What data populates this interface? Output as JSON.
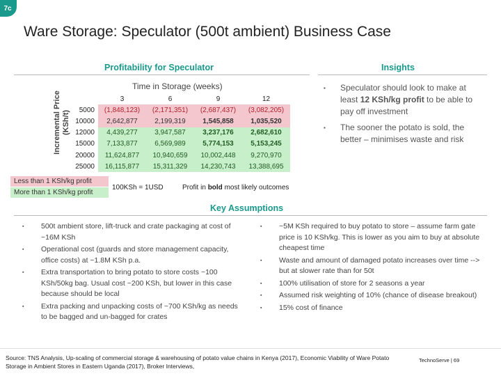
{
  "slide": {
    "number": "7c",
    "title": "Ware Storage: Speculator (500t ambient) Business Case"
  },
  "profitability": {
    "heading": "Profitability for Speculator",
    "y_axis_label": "Incremental Price (KSh/t)",
    "x_axis_label": "Time in Storage (weeks)",
    "weeks": [
      "3",
      "6",
      "9",
      "12"
    ],
    "rows": [
      {
        "price": "5000",
        "cells": [
          "(1,848,123)",
          "(2,171,351)",
          "(2,687,437)",
          "(3,082,205)"
        ],
        "classes": [
          "neg",
          "neg",
          "neg",
          "neg"
        ]
      },
      {
        "price": "10000",
        "cells": [
          "2,642,877",
          "2,199,319",
          "1,545,858",
          "1,035,520"
        ],
        "classes": [
          "low",
          "low",
          "low bold",
          "low bold"
        ]
      },
      {
        "price": "12000",
        "cells": [
          "4,439,277",
          "3,947,587",
          "3,237,176",
          "2,682,610"
        ],
        "classes": [
          "hi",
          "hi",
          "hi bold",
          "hi bold"
        ]
      },
      {
        "price": "15000",
        "cells": [
          "7,133,877",
          "6,569,989",
          "5,774,153",
          "5,153,245"
        ],
        "classes": [
          "hi",
          "hi",
          "hi bold",
          "hi bold"
        ]
      },
      {
        "price": "20000",
        "cells": [
          "11,624,877",
          "10,940,659",
          "10,002,448",
          "9,270,970"
        ],
        "classes": [
          "hi",
          "hi",
          "hi",
          "hi"
        ]
      },
      {
        "price": "25000",
        "cells": [
          "16,115,877",
          "15,311,329",
          "14,230,743",
          "13,388,695"
        ],
        "classes": [
          "hi",
          "hi",
          "hi",
          "hi"
        ]
      }
    ],
    "legend_low": "Less than 1 KSh/kg profit",
    "legend_high": "More than 1 KSh/kg profit",
    "currency_note": "100KSh = 1USD",
    "bold_note_prefix": "Profit in ",
    "bold_note_bold": "bold",
    "bold_note_suffix": " most likely outcomes"
  },
  "insights": {
    "heading": "Insights",
    "items": [
      {
        "pre": "Speculator should look to make at least ",
        "bold": "12 KSh/kg profit",
        "post": " to be able to pay off investment"
      },
      {
        "pre": "The sooner the potato is sold, the better – minimises waste and risk",
        "bold": "",
        "post": ""
      }
    ]
  },
  "assumptions": {
    "heading": "Key Assumptions",
    "left": [
      "500t ambient store, lift-truck and crate packaging at cost of ~16M KSh",
      "Operational cost (guards and store management capacity, office costs) at ~1.8M KSh p.a.",
      "Extra transportation to bring potato to store costs ~100 KSh/50kg bag. Usual cost ~200 KSh, but lower in this case because should be local",
      "Extra packing and unpacking costs of ~700 KSh/kg as needs to be bagged and un-bagged for crates"
    ],
    "right": [
      "~5M KSh required to buy potato to store – assume farm gate price is 10 KSh/kg. This is lower as you aim to buy at absolute cheapest time",
      "Waste and amount of damaged potato increases over time --> but at slower rate than for 50t",
      "100% utilisation of store for 2 seasons a year",
      "Assumed risk weighting of 10% (chance of disease breakout)",
      "15% cost of finance"
    ]
  },
  "source": "Source: TNS Analysis, Up-scaling of commercial storage & warehousing of potato value chains in Kenya (2017), Economic Viability of Ware Potato Storage in Ambient Stores in Eastern Uganda (2017), Broker Interviews,",
  "footer": "TechnoServe | 69",
  "colors": {
    "accent": "#1a9a8c",
    "low_fill": "#f4c7cf",
    "high_fill": "#c7efc9",
    "negative_text": "#b0202b"
  }
}
